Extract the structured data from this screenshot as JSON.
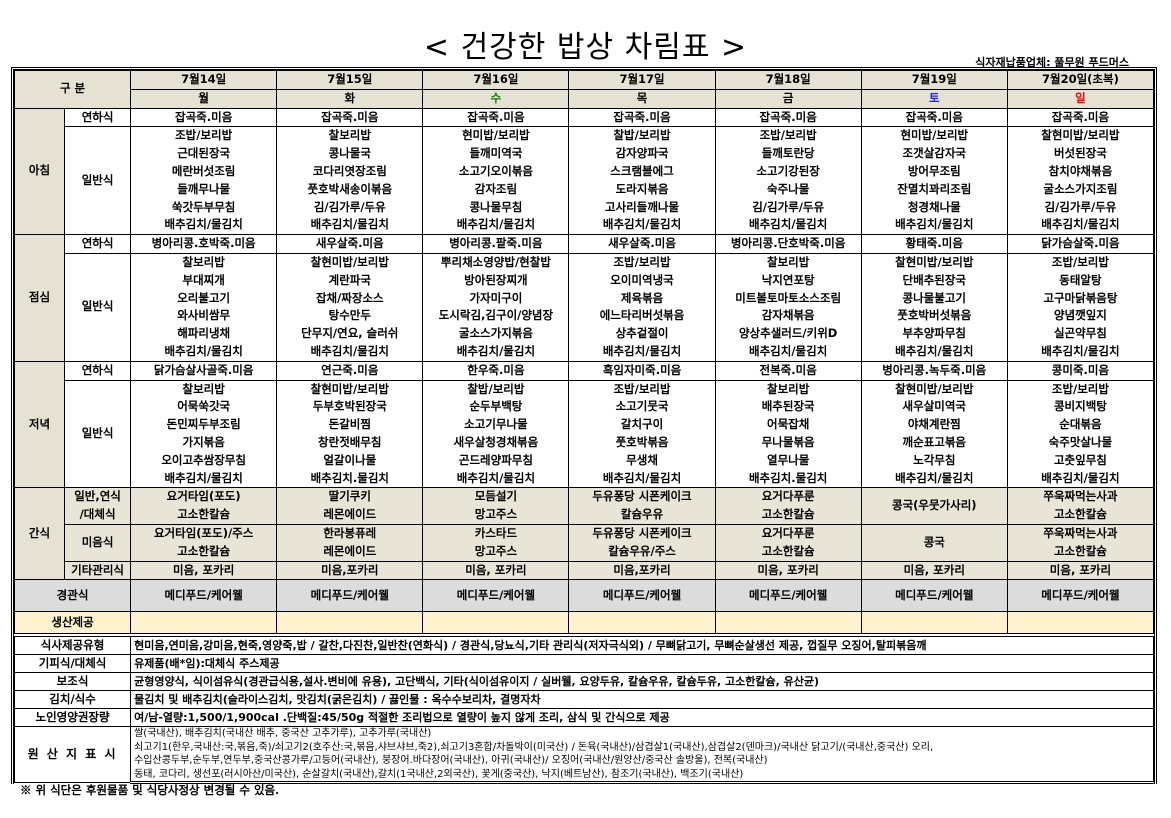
{
  "title": "< 건강한 밥상 차림표 >",
  "supplier": "식자재납품업체: 풀무원 푸드머스",
  "header": {
    "category_label": "구 분"
  },
  "days": [
    {
      "date": "7월14일",
      "dow": "월",
      "color": "#000000"
    },
    {
      "date": "7월15일",
      "dow": "화",
      "color": "#000000"
    },
    {
      "date": "7월16일",
      "dow": "수",
      "color": "#008000"
    },
    {
      "date": "7월17일",
      "dow": "목",
      "color": "#000000"
    },
    {
      "date": "7월18일",
      "dow": "금",
      "color": "#000000"
    },
    {
      "date": "7월19일",
      "dow": "토",
      "color": "#2020ff"
    },
    {
      "date": "7월20일(초복)",
      "dow": "일",
      "color": "#ff0000"
    }
  ],
  "meals": [
    {
      "label": "아침",
      "soft_label": "연하식",
      "general_label": "일반식",
      "soft": [
        "잡곡죽.미음",
        "잡곡죽.미음",
        "잡곡죽.미음",
        "잡곡죽.미음",
        "잡곡죽.미음",
        "잡곡죽.미음",
        "잡곡죽.미음"
      ],
      "general": [
        [
          "조밥/보리밥",
          "근대된장국",
          "메란버섯조림",
          "들깨무나물",
          "쑥갓두부무침",
          "배추김치/물김치"
        ],
        [
          "찰보리밥",
          "콩나물국",
          "코다리엿장조림",
          "풋호박새송이볶음",
          "김/김가루/두유",
          "배추김치/물김치"
        ],
        [
          "현미밥/보리밥",
          "들깨미역국",
          "소고기오이볶음",
          "감자조림",
          "콩나물무침",
          "배추김치/물김치"
        ],
        [
          "찰밥/보리밥",
          "감자양파국",
          "스크램블에그",
          "도라지볶음",
          "고사리들깨나물",
          "배추김치/물김치"
        ],
        [
          "조밥/보리밥",
          "들깨토란당",
          "소고기강된장",
          "숙주나물",
          "김/김가루/두유",
          "배추김치/물김치"
        ],
        [
          "현미밥/보리밥",
          "조갯살감자국",
          "방어무조림",
          "잔멸치꽈리조림",
          "청경채나물",
          "배추김치/물김치"
        ],
        [
          "찰현미밥/보리밥",
          "버섯된장국",
          "참치야채볶음",
          "굴소스가지조림",
          "김/김가루/두유",
          "배추김치/물김치"
        ]
      ]
    },
    {
      "label": "점심",
      "soft_label": "연하식",
      "general_label": "일반식",
      "soft": [
        "병아리콩.호박죽.미음",
        "새우살죽.미음",
        "병아리콩.팥죽.미음",
        "새우살죽.미음",
        "병아리콩.단호박죽.미음",
        "황태죽.미음",
        "닭가슴살죽.미음"
      ],
      "general": [
        [
          "찰보리밥",
          "부대찌개",
          "오리불고기",
          "와사비쌈무",
          "해파리냉채",
          "배추김치/물김치"
        ],
        [
          "찰현미밥/보리밥",
          "계란파국",
          "잡채/짜장소스",
          "탕수만두",
          "단무지/연요, 슬러쉬",
          "배추김치/물김치"
        ],
        [
          "뿌리채소영양밥/현찰밥",
          "방아된장찌개",
          "가자미구이",
          "도시락김,김구이/양념장",
          "굴소스가지볶음",
          "배추김치/물김치"
        ],
        [
          "조밥/보리밥",
          "오이미역냉국",
          "제육볶음",
          "에느타리버섯볶음",
          "상추겉절이",
          "배추김치/물김치"
        ],
        [
          "찰보리밥",
          "낙지연포탕",
          "미트볼토마토소스조림",
          "감자채볶음",
          "양상추샐러드/키위D",
          "배추김치/물김치"
        ],
        [
          "찰현미밥/보리밥",
          "단배추된장국",
          "콩나물불고기",
          "풋호박버섯볶음",
          "부추양파무침",
          "배추김치/물김치"
        ],
        [
          "조밥/보리밥",
          "동태알탕",
          "고구마닭볶음탕",
          "양념깻잎지",
          "실곤약무침",
          "배추김치/물김치"
        ]
      ]
    },
    {
      "label": "저녁",
      "soft_label": "연하식",
      "general_label": "일반식",
      "soft": [
        "닭가슴살사골죽.미음",
        "연근죽.미음",
        "한우죽.미음",
        "흑임자미죽.미음",
        "전복죽.미음",
        "병아리콩.녹두죽.미음",
        "콩미죽.미음"
      ],
      "general": [
        [
          "찰보리밥",
          "어묵쑥갓국",
          "돈민찌두부조림",
          "가지볶음",
          "오이고추쌈장무침",
          "배추김치/물김치"
        ],
        [
          "찰현미밥/보리밥",
          "두부호박된장국",
          "돈갈비찜",
          "창란젓배무침",
          "얼갈이나물",
          "배추김치.물김치"
        ],
        [
          "찰밥/보리밥",
          "순두부백탕",
          "소고기무나물",
          "새우살청경채볶음",
          "곤드레양파무침",
          "배추김치/물김치"
        ],
        [
          "조밥/보리밥",
          "소고기뭇국",
          "갈치구이",
          "풋호박볶음",
          "무생채",
          "배추김치/물김치"
        ],
        [
          "찰보리밥",
          "배추된장국",
          "어묵잡채",
          "무나물볶음",
          "열무나물",
          "배추김치.물김치"
        ],
        [
          "찰현미밥/보리밥",
          "새우살미역국",
          "야채계란찜",
          "깨순표고볶음",
          "노각무침",
          "배추김치/물김치"
        ],
        [
          "조밥/보리밥",
          "콩비지백탕",
          "순대볶음",
          "숙주맛살나물",
          "고춧잎무침",
          "배추김치/물김치"
        ]
      ]
    }
  ],
  "snack": {
    "label": "간식",
    "general_label_1": "일반,연식",
    "general_label_2": "/대체식",
    "general": [
      [
        "요거타임(포도)",
        "고소한칼슘"
      ],
      [
        "딸기쿠키",
        "레몬에이드"
      ],
      [
        "모듬설기",
        "망고주스"
      ],
      [
        "두유퐁당 시폰케이크",
        "칼슘우유"
      ],
      [
        "요거다푸룬",
        "고소한칼슘"
      ],
      [
        "콩국(우뭇가사리)",
        ""
      ],
      [
        "쭈욱짜먹는사과",
        "고소한칼슘"
      ]
    ],
    "puree_label": "미음식",
    "puree": [
      [
        "요거타임(포도)/주스",
        "고소한칼슘"
      ],
      [
        "한라봉퓨레",
        "레몬에이드"
      ],
      [
        "카스타드",
        "망고주스"
      ],
      [
        "두유퐁당 시폰케이크",
        "칼슘우유/주스"
      ],
      [
        "요거다푸룬",
        "고소한칼슘"
      ],
      [
        "콩국",
        ""
      ],
      [
        "쭈욱짜먹는사과",
        "고소한칼슘"
      ]
    ],
    "other_label": "기타관리식",
    "other": [
      "미음, 포카리",
      "미음,포카리",
      "미음, 포카리",
      "미음,포카리",
      "미음, 포카리",
      "미음, 포카리",
      "미음, 포카리"
    ]
  },
  "tube": {
    "label": "경관식",
    "values": [
      "메디푸드/케어웰",
      "메디푸드/케어웰",
      "메디푸드/케어웰",
      "메디푸드/케어웰",
      "메디푸드/케어웰",
      "메디푸드/케어웰",
      "메디푸드/케어웰"
    ]
  },
  "production": {
    "label": "생산제공"
  },
  "info": [
    {
      "label": "식사제공유형",
      "value": "현미음,연미음,강미음,현죽,영양죽,밥 / 갈찬,다진찬,일반찬(연화식) / 경관식,당뇨식,기타 관리식(저자극식외) / 무뼈닭고기, 무뼈순살생선 제공, 껍질무 오징어,탈피볶음깨"
    },
    {
      "label": "기피식/대체식",
      "value": "유제품(배*임):대체식 주스제공"
    },
    {
      "label": "보조식",
      "value": "균형영양식, 식이섬유식(경관급식용,설사.변비에 유용), 고단백식, 기타(식이섬유이지 / 실버웰, 요양두유, 칼슘우유, 칼슘두유, 고소한칼슘, 유산균)"
    },
    {
      "label": "김치/식수",
      "value": "물김치 및 배추김치(슬라이스김치, 맛김치(굵은김치) / 끓인물 : 옥수수보리차, 결명자차"
    },
    {
      "label": "노인영양권장량",
      "value": "여/남-열량:1,500/1,900cal .단백질:45/50g 적절한 조리법으로 열량이 높지 않게 조리, 삼식 및 간식으로 제공"
    }
  ],
  "origin": {
    "label": "원 산 지 표 시",
    "lines": [
      "쌀(국내산), 배추김치(국내산 배추, 중국산 고추가루), 고추가루(국내산)",
      "쇠고기1(한우,국내산:국,볶음,죽)/쇠고기2(호주산:국,볶음,샤브샤브,죽2),쇠고기3혼합/차돌박이(미국산) / 돈육(국내산)/삼겹살1(국내산),삼겹살2(덴마크)/국내산 닭고기/(국내산,중국산) 오리,",
      "수입산콩두부,순두부,연두부,중국산콩가루/고등어(국내산), 붕장어.바다장어(국내산), 아귀(국내산)/ 오징어(국내산/원양산/중국산 솔방울), 전복(국내산)",
      "동태, 코다리, 생선포(러시아산/미국산), 순살갈치(국내산),갈치(1국내산,2외국산), 꽃게(중국산), 낙지(베트남산), 참조기(국내산), 백조기(국내산)"
    ]
  },
  "note": "※ 위 식단은 후원물품 및 식당사정상 변경될 수 있음."
}
